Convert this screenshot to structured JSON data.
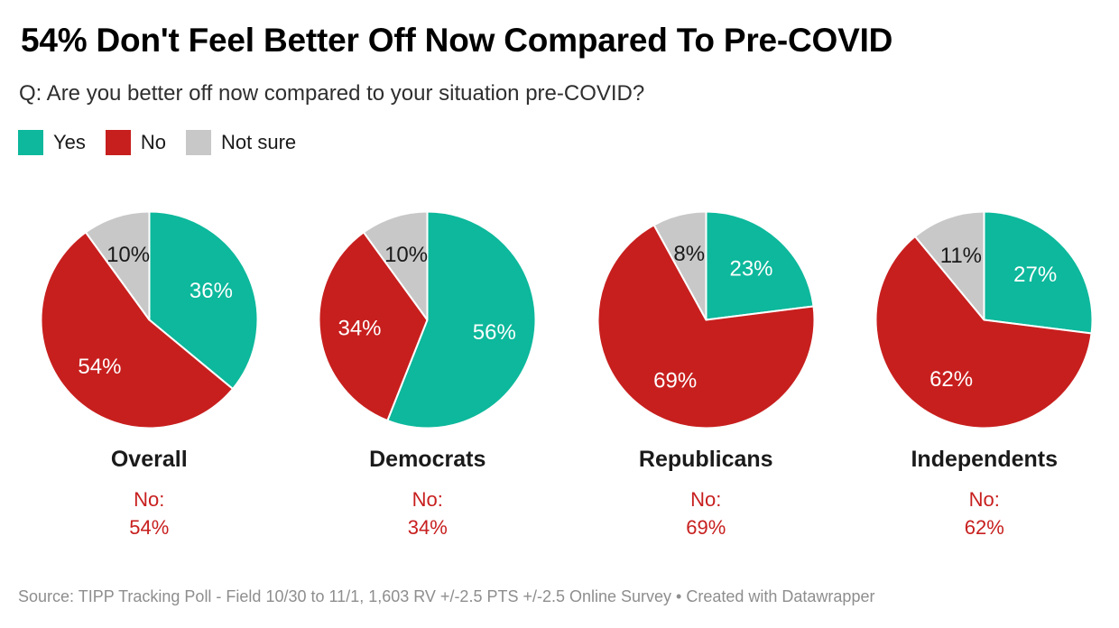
{
  "header": {
    "title": "54% Don't Feel Better Off Now Compared To Pre-COVID",
    "subtitle": "Q: Are you better off now compared to your situation pre-COVID?"
  },
  "legend": {
    "position": "top-left",
    "items": [
      {
        "label": "Yes",
        "color": "#0db89c"
      },
      {
        "label": "No",
        "color": "#c71f1e"
      },
      {
        "label": "Not sure",
        "color": "#c8c8c8"
      }
    ]
  },
  "chart_data": {
    "type": "pie",
    "categories": [
      "Yes",
      "No",
      "Not sure"
    ],
    "colors": {
      "Yes": "#0db89c",
      "No": "#c71f1e",
      "Not sure": "#c8c8c8"
    },
    "slice_label_colors": {
      "Yes": "#ffffff",
      "No": "#ffffff",
      "Not sure": "#1a1a1a"
    },
    "slice_start": "top",
    "direction": "clockwise",
    "pies": [
      {
        "group": "Overall",
        "values": {
          "Yes": 36,
          "No": 54,
          "Not sure": 10
        },
        "callout": {
          "label": "No:",
          "value": "54%"
        }
      },
      {
        "group": "Democrats",
        "values": {
          "Yes": 56,
          "No": 34,
          "Not sure": 10
        },
        "callout": {
          "label": "No:",
          "value": "34%"
        }
      },
      {
        "group": "Republicans",
        "values": {
          "Yes": 23,
          "No": 69,
          "Not sure": 8
        },
        "callout": {
          "label": "No:",
          "value": "69%"
        }
      },
      {
        "group": "Independents",
        "values": {
          "Yes": 27,
          "No": 62,
          "Not sure": 11
        },
        "callout": {
          "label": "No:",
          "value": "62%"
        }
      }
    ]
  },
  "footer": {
    "text": "Source: TIPP Tracking Poll - Field 10/30 to 11/1, 1,603 RV +/-2.5 PTS +/-2.5 Online Survey • Created with Datawrapper"
  }
}
